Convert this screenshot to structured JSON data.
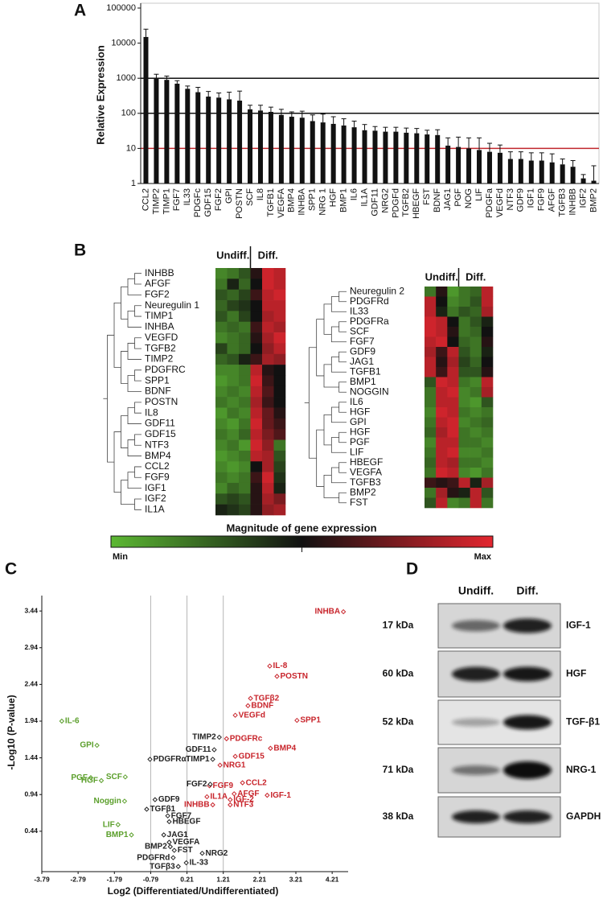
{
  "chart_data": [
    {
      "type": "bar",
      "panel": "A",
      "ylabel": "Relative Expression",
      "log": true,
      "color": "#111111",
      "ylim": [
        1,
        100000
      ],
      "yticks": [
        1,
        10,
        100,
        1000,
        10000,
        100000
      ],
      "reference_lines": [
        {
          "value": 10,
          "color": "#c0272d"
        },
        {
          "value": 100,
          "color": "#111111"
        },
        {
          "value": 1000,
          "color": "#111111"
        }
      ],
      "categories": [
        "CCL2",
        "TIMP2",
        "TIMP1",
        "FGF7",
        "IL33",
        "PDGFc",
        "GDF15",
        "FGF2",
        "GPI",
        "POSTN",
        "SCF",
        "IL8",
        "TGFB1",
        "VEGFA",
        "BMP4",
        "INHBA",
        "SPP1",
        "NRG 1",
        "HGF",
        "BMP1",
        "IL6",
        "IL1A",
        "GDF11",
        "NRG2",
        "PDGFd",
        "TGFB2",
        "HBEGF",
        "FST",
        "BDNF",
        "JAG1",
        "PGF",
        "NOG",
        "LIF",
        "PDGFa",
        "VEGFd",
        "NTF3",
        "GDF9",
        "IGF1",
        "FGF9",
        "AFGF",
        "TGFB3",
        "INHBB",
        "IGF2",
        "BMP2"
      ],
      "values": [
        15000,
        1000,
        900,
        700,
        500,
        400,
        300,
        280,
        250,
        230,
        130,
        120,
        110,
        90,
        80,
        75,
        60,
        55,
        50,
        45,
        40,
        33,
        32,
        30,
        30,
        28,
        27,
        25,
        24,
        12,
        11,
        10,
        9,
        8,
        7.5,
        5,
        5,
        4.5,
        4.5,
        4,
        3.5,
        3,
        1.4,
        1.2
      ],
      "errors": [
        10000,
        300,
        250,
        150,
        100,
        150,
        120,
        100,
        150,
        200,
        40,
        50,
        40,
        40,
        30,
        40,
        30,
        40,
        30,
        25,
        20,
        15,
        10,
        10,
        10,
        10,
        10,
        8,
        10,
        8,
        10,
        10,
        11,
        6,
        5,
        3,
        3,
        3,
        3,
        3,
        1.5,
        1.5,
        0.4,
        2
      ]
    },
    {
      "type": "heatmap",
      "panel": "B",
      "groups": [
        "Undiff.",
        "Diff."
      ],
      "zlim": [
        0,
        1
      ],
      "colorbar": {
        "title": "Magnitude of gene expression",
        "min_label": "Min",
        "max_label": "Max",
        "colors": [
          "#5cb833",
          "#111111",
          "#e3262f"
        ]
      },
      "rows": [
        "INHBB",
        "AFGF",
        "FGF2",
        "Neuregulin 1",
        "TIMP1",
        "INHBA",
        "VEGFD",
        "TGFB2",
        "TIMP2",
        "PDGFRC",
        "SPP1",
        "BDNF",
        "POSTN",
        "IL8",
        "GDF11",
        "GDF15",
        "NTF3",
        "BMP4",
        "CCL2",
        "FGF9",
        "IGF1",
        "IGF2",
        "IL1A"
      ],
      "values": [
        [
          0.15,
          0.2,
          0.3,
          0.55,
          0.95,
          0.9
        ],
        [
          0.2,
          0.45,
          0.25,
          0.5,
          0.95,
          0.9
        ],
        [
          0.3,
          0.25,
          0.35,
          0.6,
          0.9,
          0.95
        ],
        [
          0.25,
          0.35,
          0.4,
          0.5,
          0.9,
          0.9
        ],
        [
          0.3,
          0.2,
          0.35,
          0.5,
          0.85,
          0.9
        ],
        [
          0.2,
          0.25,
          0.2,
          0.6,
          0.9,
          0.85
        ],
        [
          0.15,
          0.2,
          0.25,
          0.55,
          0.85,
          0.95
        ],
        [
          0.35,
          0.2,
          0.25,
          0.5,
          0.8,
          0.9
        ],
        [
          0.25,
          0.3,
          0.45,
          0.6,
          0.85,
          0.8
        ],
        [
          0.15,
          0.15,
          0.2,
          0.9,
          0.55,
          0.5
        ],
        [
          0.1,
          0.15,
          0.2,
          0.95,
          0.6,
          0.5
        ],
        [
          0.15,
          0.2,
          0.15,
          0.9,
          0.65,
          0.5
        ],
        [
          0.2,
          0.15,
          0.2,
          0.85,
          0.6,
          0.5
        ],
        [
          0.1,
          0.2,
          0.15,
          0.9,
          0.7,
          0.55
        ],
        [
          0.15,
          0.1,
          0.2,
          0.95,
          0.7,
          0.6
        ],
        [
          0.2,
          0.15,
          0.25,
          0.9,
          0.75,
          0.65
        ],
        [
          0.15,
          0.2,
          0.1,
          0.95,
          0.8,
          0.2
        ],
        [
          0.1,
          0.15,
          0.2,
          0.9,
          0.85,
          0.3
        ],
        [
          0.15,
          0.1,
          0.15,
          0.5,
          0.85,
          0.35
        ],
        [
          0.2,
          0.15,
          0.2,
          0.6,
          0.95,
          0.4
        ],
        [
          0.15,
          0.25,
          0.2,
          0.55,
          0.9,
          0.45
        ],
        [
          0.3,
          0.35,
          0.3,
          0.55,
          0.85,
          0.75
        ],
        [
          0.45,
          0.4,
          0.35,
          0.55,
          0.8,
          0.85
        ]
      ]
    },
    {
      "type": "heatmap",
      "groups": [
        "Undiff.",
        "Diff."
      ],
      "zlim": [
        0,
        1
      ],
      "rows": [
        "Neuregulin 2",
        "PDGFRd",
        "IL33",
        "PDGFRa",
        "SCF",
        "FGF7",
        "GDF9",
        "JAG1",
        "TGFB1",
        "BMP1",
        "NOGGIN",
        "IL6",
        "HGF",
        "GPI",
        "HGF",
        "PGF",
        "LIF",
        "HBEGF",
        "VEGFA",
        "TGFB3",
        "BMP2",
        "FST"
      ],
      "values": [
        [
          0.2,
          0.55,
          0.1,
          0.2,
          0.25,
          0.9
        ],
        [
          0.9,
          0.5,
          0.15,
          0.2,
          0.3,
          0.9
        ],
        [
          0.9,
          0.45,
          0.2,
          0.3,
          0.25,
          0.85
        ],
        [
          0.95,
          0.9,
          0.5,
          0.2,
          0.3,
          0.45
        ],
        [
          0.95,
          0.9,
          0.55,
          0.2,
          0.25,
          0.5
        ],
        [
          0.9,
          0.95,
          0.5,
          0.25,
          0.2,
          0.55
        ],
        [
          0.85,
          0.6,
          0.9,
          0.3,
          0.2,
          0.45
        ],
        [
          0.9,
          0.55,
          0.85,
          0.35,
          0.25,
          0.5
        ],
        [
          0.9,
          0.6,
          0.9,
          0.3,
          0.3,
          0.55
        ],
        [
          0.3,
          0.95,
          0.9,
          0.2,
          0.15,
          0.9
        ],
        [
          0.2,
          0.9,
          0.95,
          0.15,
          0.2,
          0.85
        ],
        [
          0.2,
          0.9,
          0.9,
          0.15,
          0.1,
          0.3
        ],
        [
          0.15,
          0.95,
          0.9,
          0.2,
          0.15,
          0.2
        ],
        [
          0.2,
          0.9,
          0.95,
          0.15,
          0.2,
          0.25
        ],
        [
          0.25,
          0.85,
          0.95,
          0.2,
          0.15,
          0.2
        ],
        [
          0.15,
          0.9,
          0.9,
          0.2,
          0.2,
          0.15
        ],
        [
          0.2,
          0.9,
          0.95,
          0.15,
          0.15,
          0.2
        ],
        [
          0.25,
          0.9,
          0.85,
          0.2,
          0.2,
          0.15
        ],
        [
          0.2,
          0.95,
          0.9,
          0.15,
          0.1,
          0.2
        ],
        [
          0.6,
          0.55,
          0.6,
          0.9,
          0.45,
          0.85
        ],
        [
          0.2,
          0.85,
          0.55,
          0.45,
          0.9,
          0.3
        ],
        [
          0.3,
          0.9,
          0.15,
          0.2,
          0.9,
          0.2
        ]
      ]
    },
    {
      "type": "scatter",
      "panel": "C",
      "xlabel": "Log2 (Differentiated/Undifferentiated)",
      "ylabel": "-Log10 (P-value)",
      "xlim": [
        -3.79,
        4.65
      ],
      "ylim": [
        -0.11,
        3.65
      ],
      "xticks": [
        -3.79,
        -2.79,
        -1.79,
        -0.79,
        0.21,
        1.21,
        2.21,
        3.21,
        4.21
      ],
      "yticks": [
        0.44,
        0.94,
        1.44,
        1.94,
        2.44,
        2.94,
        3.44
      ],
      "vlines": [
        -0.79,
        0.21,
        1.21
      ],
      "series": [
        {
          "color": "#c8242b",
          "labels": [
            "INHBA",
            "IL-8",
            "POSTN",
            "TGFβ2",
            "BDNF",
            "VEGFd",
            "SPP1",
            "PDGFRc",
            "BMP4",
            "GDF15",
            "NRG1",
            "FGF9",
            "CCL2",
            "AFGF",
            "IL1A",
            "IGF-2",
            "IGF-1",
            "INHBB",
            "NTF3"
          ],
          "x": [
            4.52,
            2.49,
            2.69,
            1.96,
            1.89,
            1.54,
            3.24,
            1.3,
            2.51,
            1.54,
            1.12,
            0.83,
            1.74,
            1.51,
            0.76,
            1.4,
            2.42,
            0.92,
            1.4
          ],
          "y": [
            3.43,
            2.69,
            2.55,
            2.25,
            2.15,
            2.02,
            1.95,
            1.7,
            1.57,
            1.46,
            1.34,
            1.06,
            1.1,
            0.95,
            0.91,
            0.87,
            0.93,
            0.8,
            0.8
          ]
        },
        {
          "color": "#5b9f2b",
          "labels": [
            "IL-6",
            "GPI",
            "PGF",
            "HGF",
            "SCF",
            "Noggin",
            "LIF",
            "BMP1"
          ],
          "x": [
            -3.24,
            -2.27,
            -2.44,
            -2.15,
            -1.49,
            -1.51,
            -1.69,
            -1.32
          ],
          "y": [
            1.94,
            1.61,
            1.17,
            1.13,
            1.18,
            0.85,
            0.53,
            0.39
          ]
        },
        {
          "color": "#222222",
          "labels": [
            "TIMP2",
            "GDF11",
            "TIMP1",
            "PDGFRα",
            "FGF2",
            "GDF9",
            "TGFβ1",
            "FGF7",
            "HBEGF",
            "JAG1",
            "VEGFA",
            "BMP2",
            "FST",
            "NRG2",
            "PDGFRd",
            "IL-33",
            "TGFβ3"
          ],
          "x": [
            1.1,
            0.96,
            0.92,
            -0.81,
            0.85,
            -0.67,
            -0.9,
            -0.32,
            -0.28,
            -0.43,
            -0.28,
            -0.25,
            -0.14,
            0.63,
            -0.17,
            0.19,
            -0.03
          ],
          "y": [
            1.72,
            1.55,
            1.42,
            1.42,
            1.08,
            0.87,
            0.74,
            0.65,
            0.57,
            0.39,
            0.29,
            0.23,
            0.18,
            0.14,
            0.08,
            0.01,
            -0.04
          ]
        }
      ]
    }
  ],
  "blot": {
    "panel": "D",
    "columns": [
      "Undiff.",
      "Diff."
    ],
    "rows": [
      {
        "size": "17 kDa",
        "protein": "IGF-1"
      },
      {
        "size": "60 kDa",
        "protein": "HGF"
      },
      {
        "size": "52 kDa",
        "protein": "TGF-β1"
      },
      {
        "size": "71 kDa",
        "protein": "NRG-1"
      },
      {
        "size": "38 kDa",
        "protein": "GAPDH"
      }
    ]
  }
}
